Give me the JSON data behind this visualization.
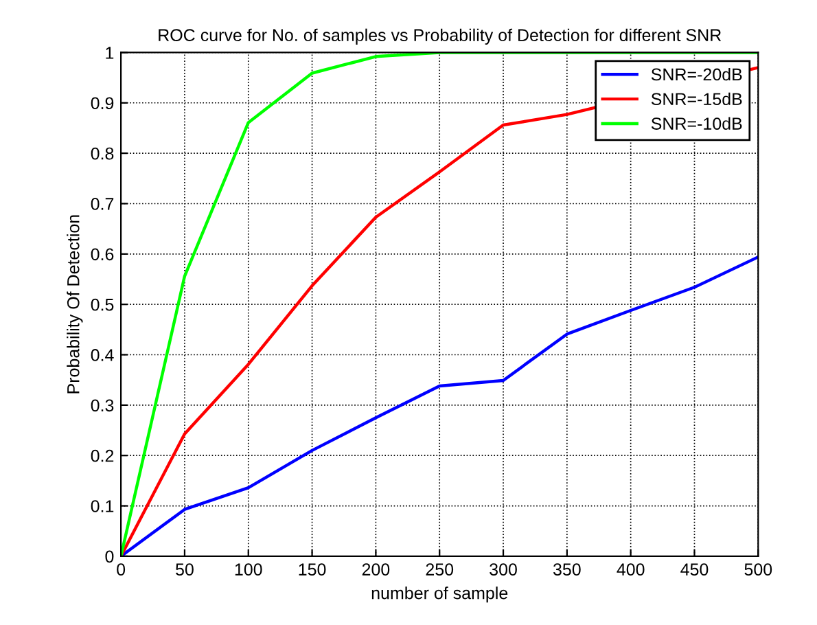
{
  "chart_data": {
    "type": "line",
    "title": "ROC curve for No. of samples vs Probability of Detection for different SNR",
    "xlabel": "number of sample",
    "ylabel": "Probability Of Detection",
    "x": [
      0,
      50,
      100,
      150,
      200,
      250,
      300,
      350,
      400,
      450,
      500
    ],
    "series": [
      {
        "name": "SNR=-20dB",
        "color": "#0000ff",
        "values": [
          0,
          0.093,
          0.136,
          0.21,
          0.275,
          0.338,
          0.349,
          0.441,
          0.488,
          0.534,
          0.594
        ]
      },
      {
        "name": "SNR=-15dB",
        "color": "#ff0000",
        "x": [
          0,
          50,
          100,
          150,
          200,
          250,
          300,
          350,
          500
        ],
        "values": [
          0,
          0.243,
          0.381,
          0.537,
          0.673,
          0.763,
          0.856,
          0.877,
          0.97
        ]
      },
      {
        "name": "SNR=-10dB",
        "color": "#00ff00",
        "values": [
          0,
          0.556,
          0.861,
          0.959,
          0.992,
          1,
          1,
          1,
          1,
          1,
          1
        ]
      }
    ],
    "xlim": [
      0,
      500
    ],
    "xticks": [
      0,
      50,
      100,
      150,
      200,
      250,
      300,
      350,
      400,
      450,
      500
    ],
    "ylim": [
      0,
      1
    ],
    "yticks": [
      0,
      0.1,
      0.2,
      0.3,
      0.4,
      0.5,
      0.6,
      0.7,
      0.8,
      0.9,
      1
    ],
    "grid": true,
    "legend": "top right",
    "line_style": "solid",
    "marker": "none"
  }
}
